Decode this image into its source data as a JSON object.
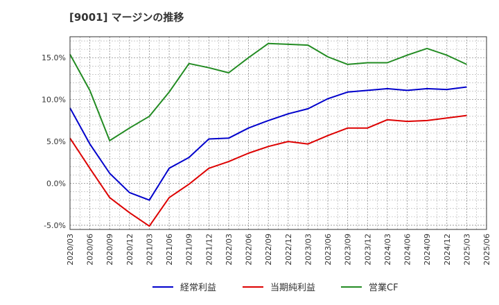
{
  "chart_data": {
    "type": "line",
    "title": "[9001]  マージンの推移",
    "xlabel": "",
    "ylabel": "",
    "x": [
      "2020/03",
      "2020/06",
      "2020/09",
      "2020/12",
      "2021/03",
      "2021/06",
      "2021/09",
      "2021/12",
      "2022/03",
      "2022/06",
      "2022/09",
      "2022/12",
      "2023/03",
      "2023/06",
      "2023/09",
      "2023/12",
      "2024/03",
      "2024/06",
      "2024/09",
      "2024/12",
      "2025/03"
    ],
    "x_ticks": [
      "2020/03",
      "2020/06",
      "2020/09",
      "2020/12",
      "2021/03",
      "2021/06",
      "2021/09",
      "2021/12",
      "2022/03",
      "2022/06",
      "2022/09",
      "2022/12",
      "2023/03",
      "2023/06",
      "2023/09",
      "2023/12",
      "2024/03",
      "2024/06",
      "2024/09",
      "2024/12",
      "2025/03",
      "2025/06"
    ],
    "y_ticks": [
      -5,
      0,
      5,
      10,
      15
    ],
    "y_tick_labels": [
      "-5.0%",
      "0.0%",
      "5.0%",
      "10.0%",
      "15.0%"
    ],
    "ylim": [
      -5.5,
      17.5
    ],
    "grid": true,
    "legend_position": "bottom",
    "series": [
      {
        "name": "経常利益",
        "color": "#0000cc",
        "values": [
          9.0,
          4.7,
          1.2,
          -1.1,
          -2.0,
          1.8,
          3.1,
          5.3,
          5.4,
          6.6,
          7.5,
          8.3,
          8.9,
          10.1,
          10.9,
          11.1,
          11.3,
          11.1,
          11.3,
          11.2,
          11.5
        ]
      },
      {
        "name": "当期純利益",
        "color": "#dd0000",
        "values": [
          5.4,
          1.8,
          -1.7,
          -3.5,
          -5.1,
          -1.7,
          -0.1,
          1.8,
          2.6,
          3.6,
          4.4,
          5.0,
          4.7,
          5.7,
          6.6,
          6.6,
          7.6,
          7.4,
          7.5,
          7.8,
          8.1
        ]
      },
      {
        "name": "営業CF",
        "color": "#228b22",
        "values": [
          15.4,
          11.1,
          5.1,
          6.6,
          8.0,
          10.9,
          14.3,
          13.8,
          13.2,
          15.0,
          16.7,
          16.6,
          16.5,
          15.1,
          14.2,
          14.4,
          14.4,
          15.3,
          16.1,
          15.3,
          14.2
        ]
      }
    ]
  }
}
